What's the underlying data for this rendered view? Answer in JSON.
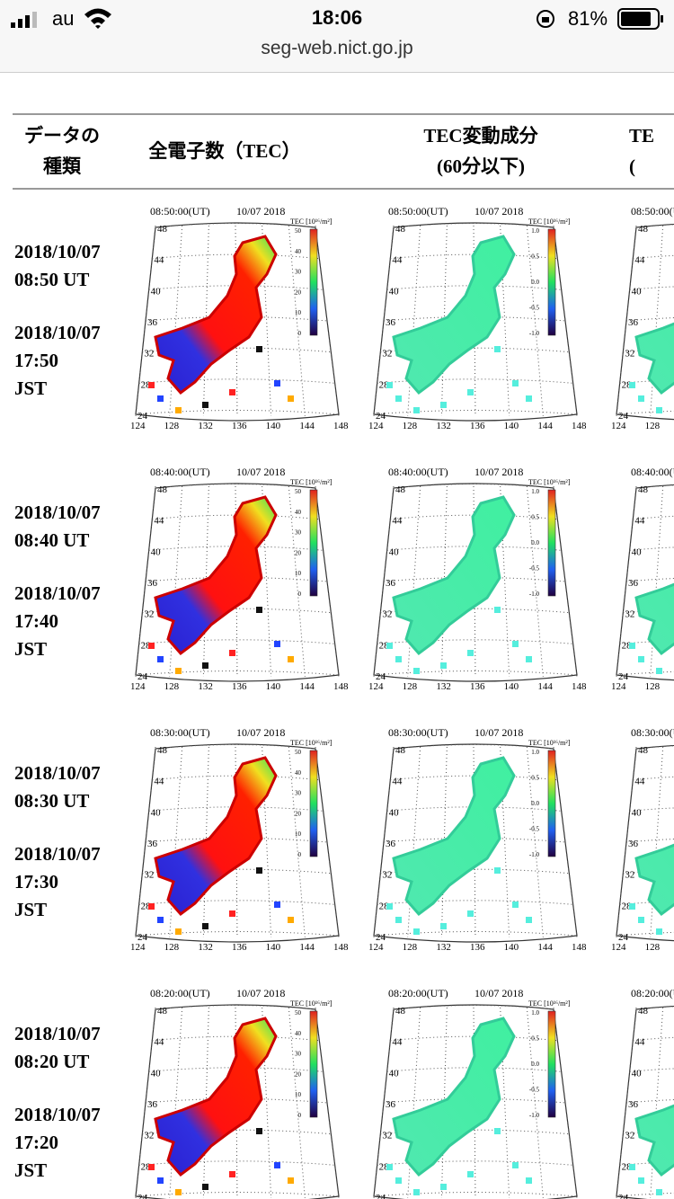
{
  "status_bar": {
    "carrier": "au",
    "time": "18:06",
    "battery": "81%",
    "url": "seg-web.nict.go.jp"
  },
  "table": {
    "headers": [
      [
        "データの",
        "種類"
      ],
      [
        "全電子数（TEC）"
      ],
      [
        "TEC変動成分",
        "(60分以下)"
      ],
      [
        "TE",
        "("
      ]
    ],
    "rows": [
      {
        "ut_date": "2018/10/07",
        "ut_time": "08:50 UT",
        "jst_date": "2018/10/07",
        "jst_time": "17:50",
        "jst_zone": "JST",
        "map_time": "08:50:00(UT)",
        "map_date": "10/07 2018"
      },
      {
        "ut_date": "2018/10/07",
        "ut_time": "08:40 UT",
        "jst_date": "2018/10/07",
        "jst_time": "17:40",
        "jst_zone": "JST",
        "map_time": "08:40:00(UT)",
        "map_date": "10/07 2018"
      },
      {
        "ut_date": "2018/10/07",
        "ut_time": "08:30 UT",
        "jst_date": "2018/10/07",
        "jst_time": "17:30",
        "jst_zone": "JST",
        "map_time": "08:30:00(UT)",
        "map_date": "10/07 2018"
      },
      {
        "ut_date": "2018/10/07",
        "ut_time": "08:20 UT",
        "jst_date": "2018/10/07",
        "jst_time": "17:20",
        "jst_zone": "JST",
        "map_time": "08:20:00(UT)",
        "map_date": "10/07 2018"
      }
    ]
  },
  "maps": {
    "lat_ticks": [
      "48",
      "44",
      "40",
      "36",
      "32",
      "28",
      "24"
    ],
    "lon_ticks": [
      "124",
      "128",
      "132",
      "136",
      "140",
      "144",
      "148"
    ],
    "tec_colorbar": {
      "label": "TEC [10¹⁶/m²]",
      "ticks": [
        "50",
        "40",
        "30",
        "20",
        "10",
        "0"
      ]
    },
    "dtec_colorbar": {
      "label": "TEC [10¹⁶/m²]",
      "ticks": [
        "1.0",
        "0.5",
        "0.0",
        "-0.5",
        "-1.0"
      ]
    }
  }
}
